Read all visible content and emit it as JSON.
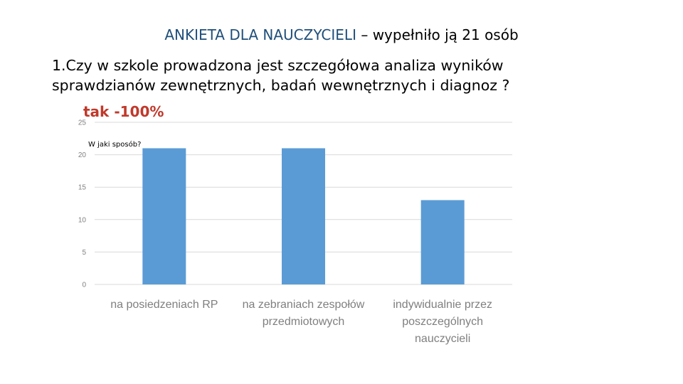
{
  "header": {
    "title_lead": "ANKIETA DLA NAUCZYCIELI",
    "title_rest": " – wypełniło ją 21 osób"
  },
  "question": {
    "line1": "1.Czy w szkole prowadzona jest szczegółowa analiza wyników",
    "line2": "sprawdzianów zewnętrznych, badań wewnętrznych i  diagnoz ?",
    "answer": "tak -100%",
    "followup": "W jaki sposób?"
  },
  "colors": {
    "bar": "#5b9bd5",
    "grid": "#d9d9d9",
    "tick_text": "#7f7f7f",
    "title_lead": "#1f4e79",
    "answer": "#c0392b"
  },
  "chart_data": {
    "type": "bar",
    "categories": [
      [
        "na posiedzeniach RP"
      ],
      [
        "na zebraniach zespołów",
        "przedmiotowych"
      ],
      [
        "indywidualnie przez",
        "poszczególnych",
        "nauczycieli"
      ]
    ],
    "values": [
      21,
      21,
      13
    ],
    "yticks": [
      "0",
      "5",
      "10",
      "15",
      "20",
      "25"
    ],
    "ylim": [
      0,
      25
    ],
    "grid": true,
    "legend": "none"
  }
}
